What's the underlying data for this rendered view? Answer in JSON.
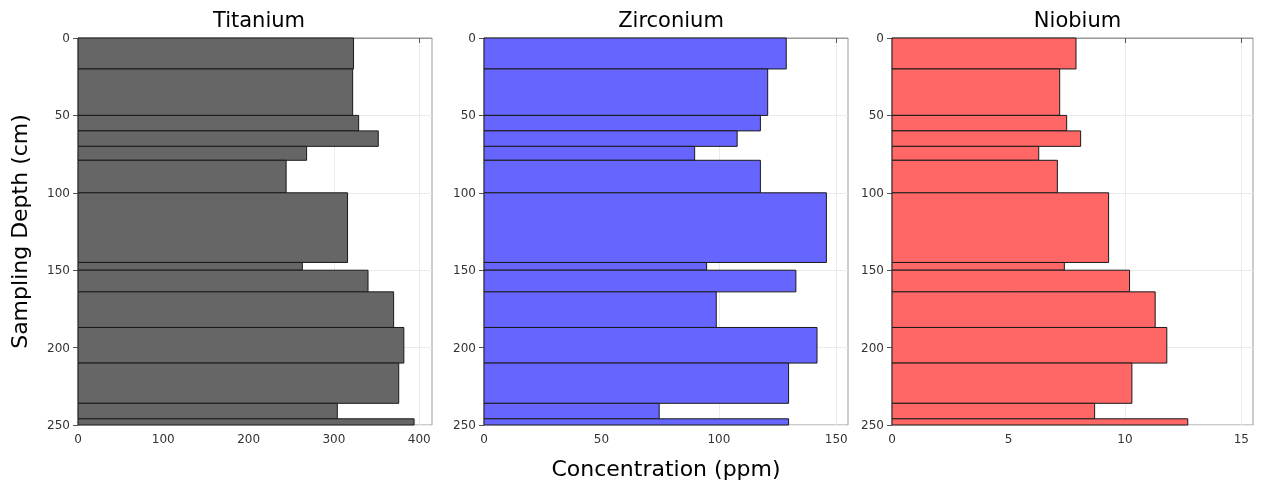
{
  "chart_data": [
    {
      "type": "histogram",
      "orientation": "horizontal",
      "title": "Titanium",
      "ylabel": "Sampling Depth (cm)",
      "color": "#666666",
      "bins": [
        0,
        20,
        50,
        60,
        70,
        79,
        100,
        145,
        150,
        164,
        187,
        210,
        236,
        246,
        250
      ],
      "values": [
        323,
        322,
        329,
        352,
        268,
        244,
        316,
        263,
        340,
        370,
        382,
        376,
        304,
        394
      ],
      "xlim": [
        0,
        415
      ],
      "xticks": [
        0,
        100,
        200,
        300,
        400
      ],
      "ylim": [
        250,
        0
      ],
      "yticks": [
        0,
        50,
        100,
        150,
        200,
        250
      ],
      "grid": true
    },
    {
      "type": "histogram",
      "orientation": "horizontal",
      "title": "Zirconium",
      "xlabel": "Concentration (ppm)",
      "color": "#6666ff",
      "bins": [
        0,
        20,
        50,
        60,
        70,
        79,
        100,
        145,
        150,
        164,
        187,
        210,
        236,
        246,
        250
      ],
      "values": [
        128.7,
        120.8,
        117.7,
        107.8,
        89.7,
        117.7,
        145.8,
        94.8,
        132.8,
        98.9,
        141.8,
        129.7,
        74.6,
        129.7
      ],
      "xlim": [
        0,
        155
      ],
      "xticks": [
        0,
        50,
        100,
        150
      ],
      "ylim": [
        250,
        0
      ],
      "yticks": [
        0,
        50,
        100,
        150,
        200,
        250
      ],
      "grid": true
    },
    {
      "type": "histogram",
      "orientation": "horizontal",
      "title": "Niobium",
      "color": "#ff6666",
      "bins": [
        0,
        20,
        50,
        60,
        70,
        79,
        100,
        145,
        150,
        164,
        187,
        210,
        236,
        246,
        250
      ],
      "values": [
        7.9,
        7.2,
        7.5,
        8.1,
        6.3,
        7.1,
        9.3,
        7.4,
        10.2,
        11.3,
        11.8,
        10.3,
        8.7,
        12.7
      ],
      "xlim": [
        0,
        15.5
      ],
      "xticks": [
        0,
        5,
        10,
        15
      ],
      "ylim": [
        250,
        0
      ],
      "yticks": [
        0,
        50,
        100,
        150,
        200,
        250
      ],
      "grid": true
    }
  ]
}
